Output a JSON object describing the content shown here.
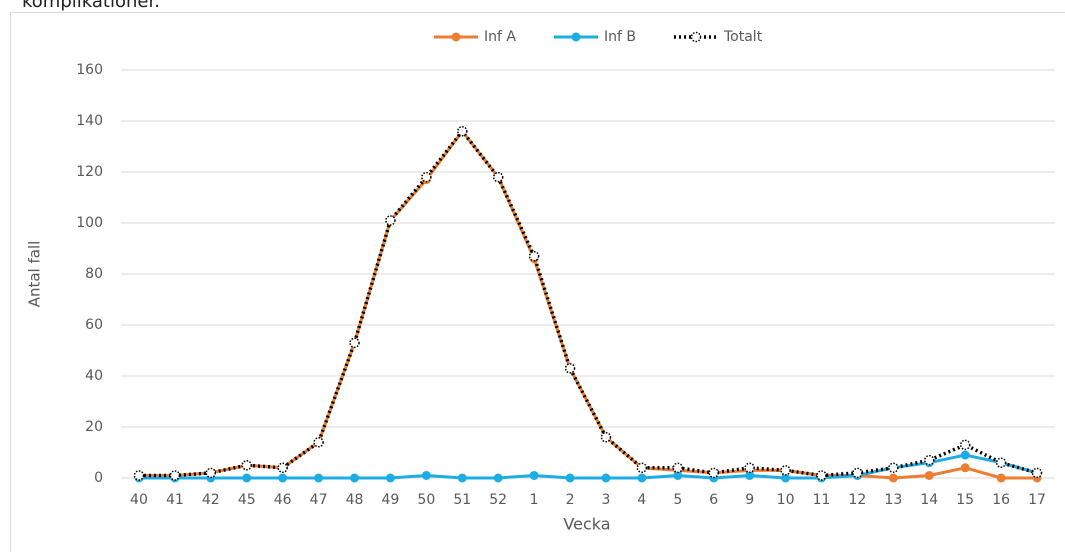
{
  "header": {
    "text": "komplikationer."
  },
  "chart_data": {
    "type": "line",
    "x_label": "Vecka",
    "y_label": "Antal fall",
    "categories": [
      "40",
      "41",
      "42",
      "45",
      "46",
      "47",
      "48",
      "49",
      "50",
      "51",
      "52",
      "1",
      "2",
      "3",
      "4",
      "5",
      "6",
      "9",
      "10",
      "11",
      "12",
      "13",
      "14",
      "15",
      "16",
      "17"
    ],
    "series": [
      {
        "name": "Inf A",
        "color": "#ed7d31",
        "line_style": "solid",
        "values": [
          1,
          1,
          2,
          5,
          4,
          14,
          53,
          101,
          117,
          136,
          118,
          86,
          43,
          16,
          4,
          3,
          2,
          3,
          3,
          1,
          1,
          0,
          1,
          4,
          0,
          0
        ]
      },
      {
        "name": "Inf B",
        "color": "#1cade4",
        "line_style": "solid",
        "values": [
          0,
          0,
          0,
          0,
          0,
          0,
          0,
          0,
          1,
          0,
          0,
          1,
          0,
          0,
          0,
          1,
          0,
          1,
          0,
          0,
          1,
          4,
          6,
          9,
          6,
          2
        ]
      },
      {
        "name": "Totalt",
        "color": "#000000",
        "line_style": "dotted",
        "values": [
          1,
          1,
          2,
          5,
          4,
          14,
          53,
          101,
          118,
          136,
          118,
          87,
          43,
          16,
          4,
          4,
          2,
          4,
          3,
          1,
          2,
          4,
          7,
          13,
          6,
          2
        ]
      }
    ],
    "ylim": [
      0,
      160
    ],
    "yticks": [
      0,
      20,
      40,
      60,
      80,
      100,
      120,
      140,
      160
    ],
    "grid": true,
    "legend_position": "top"
  }
}
